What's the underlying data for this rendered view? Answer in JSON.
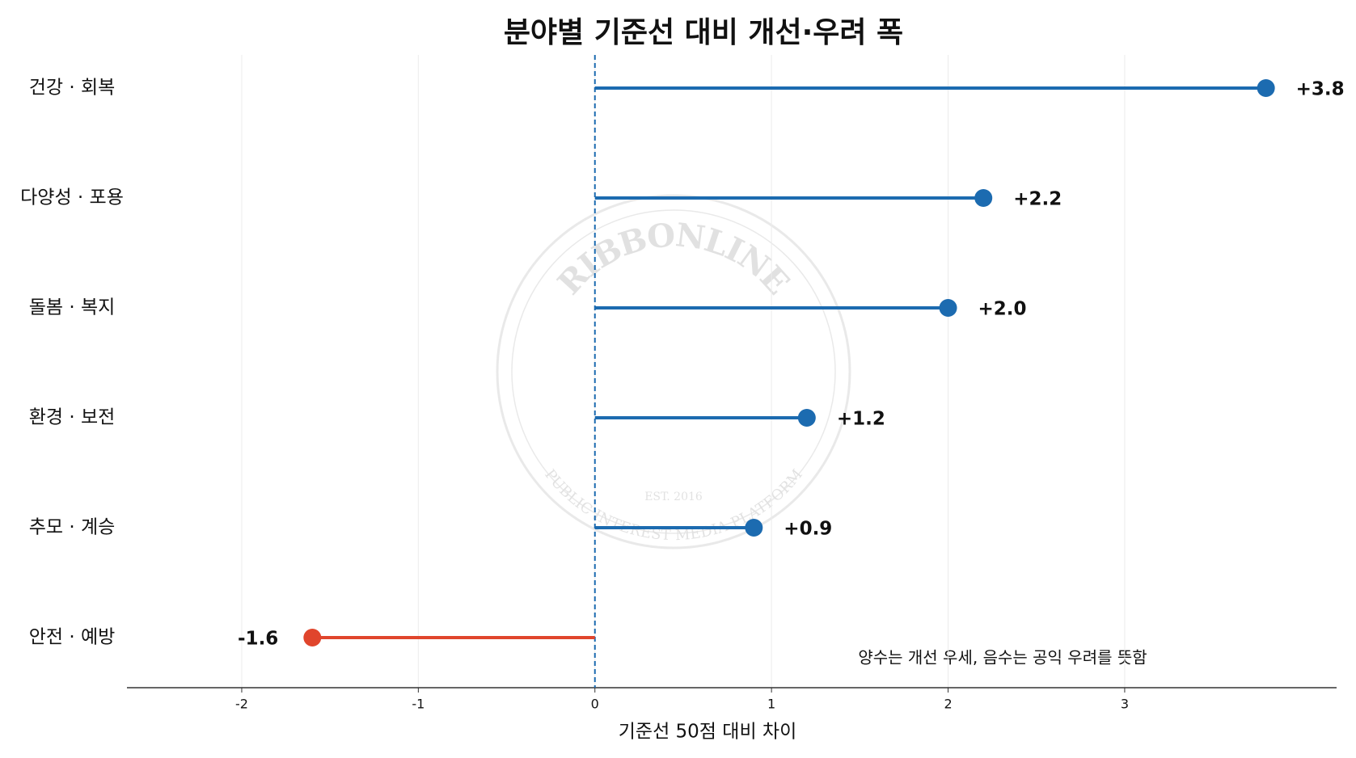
{
  "chart_data": {
    "type": "lollipop",
    "orientation": "horizontal",
    "title": "분야별 기준선 대비 개선·우려 폭",
    "xlabel": "기준선 50점 대비 차이",
    "annotation": "양수는 개선 우세, 음수는 공익 우려를 뜻함",
    "categories": [
      "건강 · 회복",
      "다양성 · 포용",
      "돌봄 · 복지",
      "환경 · 보전",
      "추모 · 계승",
      "안전 · 예방"
    ],
    "values": [
      3.8,
      2.2,
      2.0,
      1.2,
      0.9,
      -1.6
    ],
    "value_labels": [
      "+3.8",
      "+2.2",
      "+2.0",
      "+1.2",
      "+0.9",
      "-1.6"
    ],
    "color": "#1c6bb0",
    "negative_color": "#e0452c",
    "xlim": [
      -2.65,
      4.2
    ],
    "xticks": [
      -2,
      -1,
      0,
      1,
      2,
      3
    ],
    "grid": true,
    "zero_line": true,
    "watermark": {
      "top": "RIBBONLINE",
      "bottom": "PUBLIC INTEREST MEDIA PLATFORM",
      "est": "EST. 2016"
    }
  }
}
